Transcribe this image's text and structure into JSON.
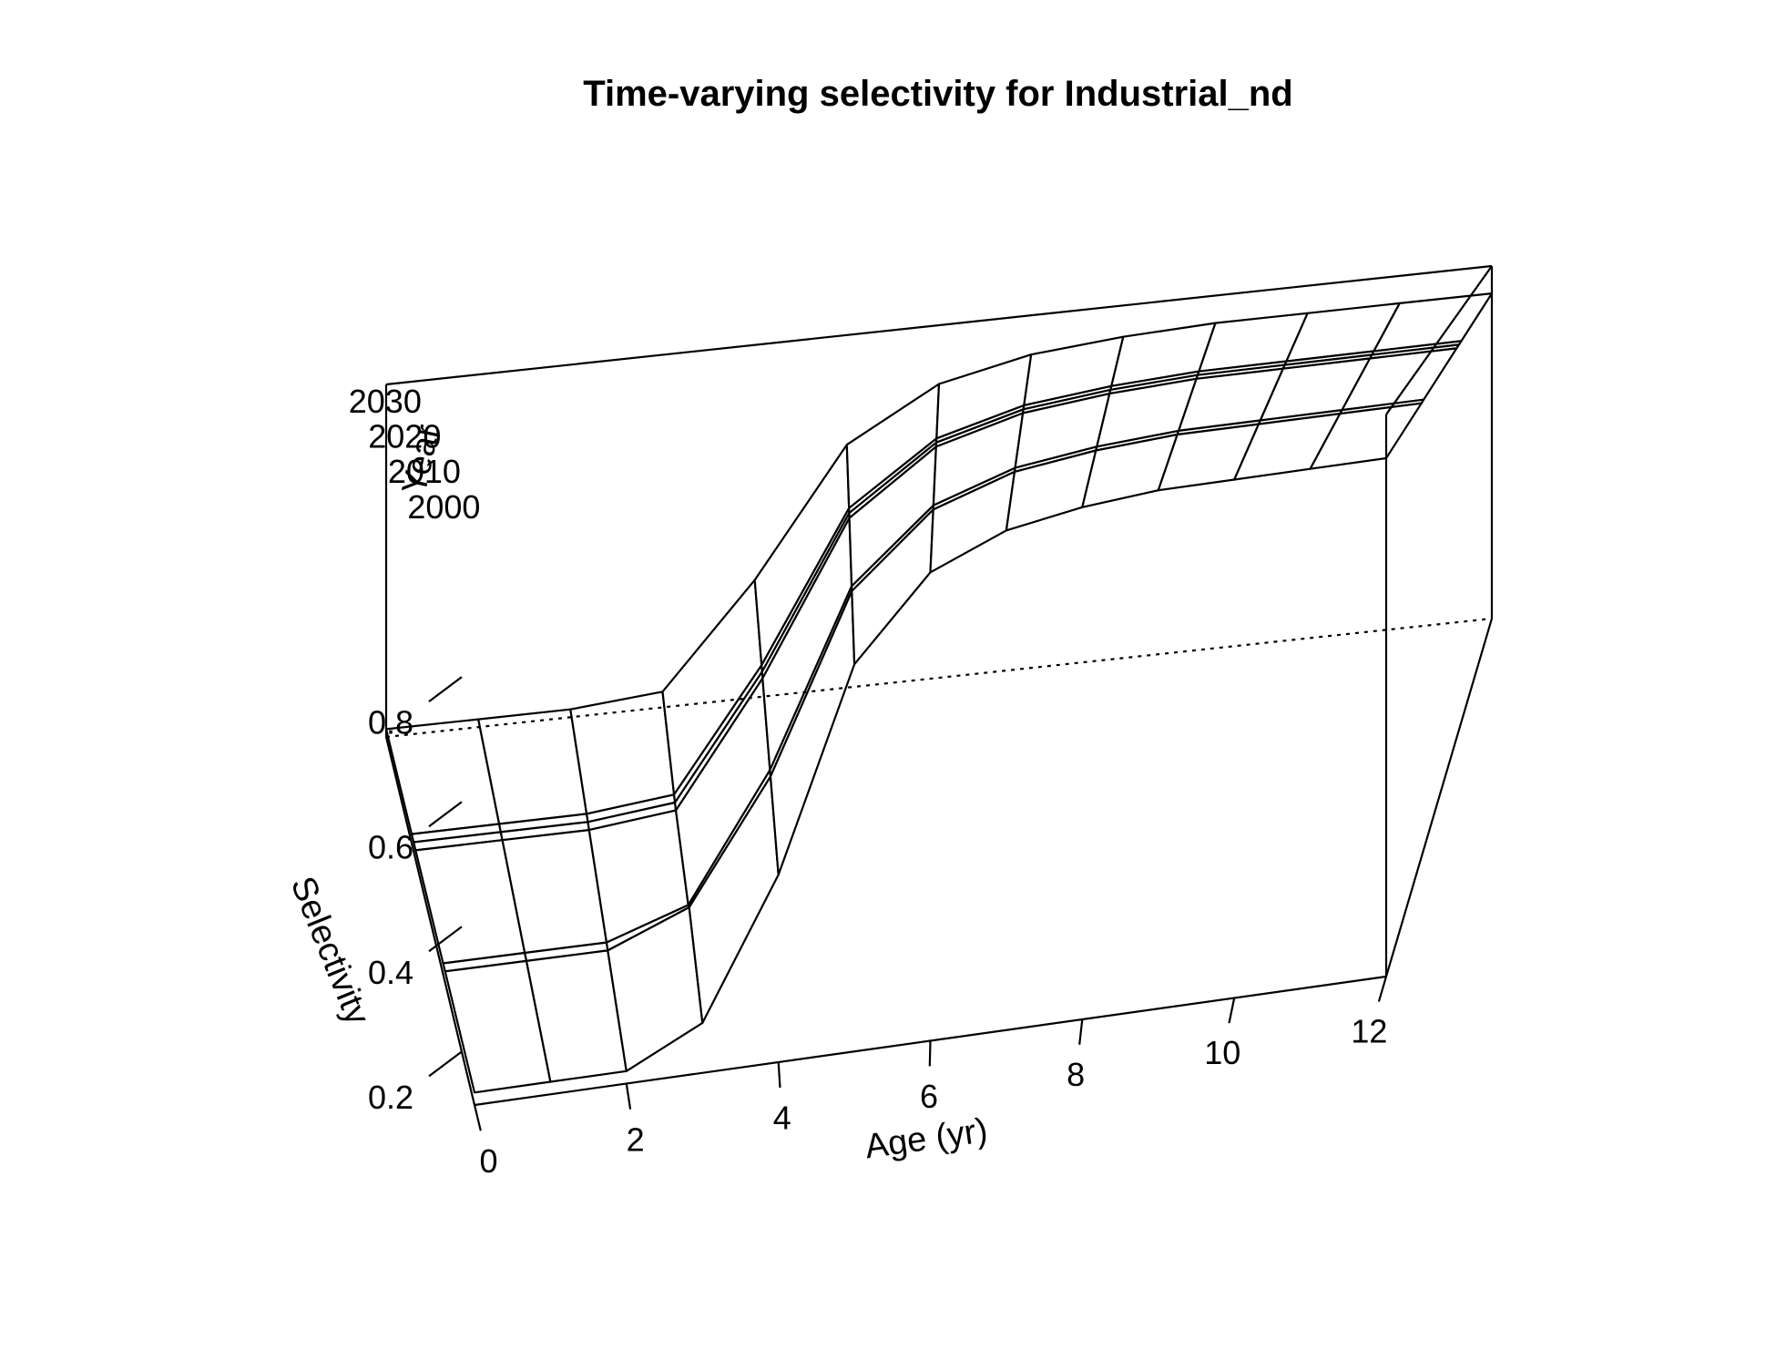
{
  "chart_data": {
    "type": "surface",
    "title": "Time-varying selectivity for Industrial_nd",
    "xlabel": "Age (yr)",
    "ylabel": "Year",
    "zlabel": "Selectivity",
    "x_ticks": [
      "0",
      "2",
      "4",
      "6",
      "8",
      "10",
      "12"
    ],
    "y_ticks": [
      "2000",
      "2010",
      "2020",
      "2030"
    ],
    "z_ticks": [
      "0.2",
      "0.4",
      "0.6",
      "0.8"
    ],
    "xlim": [
      0,
      12
    ],
    "ylim": [
      1990,
      2035
    ],
    "zlim": [
      0.1,
      1.0
    ],
    "ages": [
      0,
      1,
      2,
      3,
      4,
      5,
      6,
      7,
      8,
      9,
      10,
      11,
      12
    ],
    "years": [
      1990,
      2005,
      2006,
      2020,
      2021,
      2022,
      2035
    ],
    "surface": [
      {
        "year": 1990,
        "selectivity": [
          0.12,
          0.12,
          0.12,
          0.18,
          0.4,
          0.72,
          0.85,
          0.9,
          0.92,
          0.93,
          0.93,
          0.93,
          0.93
        ]
      },
      {
        "year": 2005,
        "selectivity": [
          0.12,
          0.12,
          0.12,
          0.18,
          0.4,
          0.72,
          0.85,
          0.9,
          0.92,
          0.93,
          0.93,
          0.93,
          0.93
        ]
      },
      {
        "year": 2006,
        "selectivity": [
          0.12,
          0.12,
          0.12,
          0.17,
          0.4,
          0.72,
          0.85,
          0.9,
          0.92,
          0.93,
          0.93,
          0.93,
          0.93
        ]
      },
      {
        "year": 2020,
        "selectivity": [
          0.12,
          0.12,
          0.12,
          0.14,
          0.4,
          0.72,
          0.85,
          0.9,
          0.92,
          0.93,
          0.93,
          0.93,
          0.93
        ]
      },
      {
        "year": 2021,
        "selectivity": [
          0.12,
          0.12,
          0.12,
          0.14,
          0.4,
          0.72,
          0.85,
          0.9,
          0.92,
          0.93,
          0.93,
          0.93,
          0.93
        ]
      },
      {
        "year": 2022,
        "selectivity": [
          0.12,
          0.12,
          0.12,
          0.14,
          0.4,
          0.72,
          0.85,
          0.9,
          0.92,
          0.93,
          0.93,
          0.93,
          0.93
        ]
      },
      {
        "year": 2035,
        "selectivity": [
          0.12,
          0.12,
          0.12,
          0.14,
          0.4,
          0.72,
          0.85,
          0.9,
          0.92,
          0.93,
          0.93,
          0.93,
          0.93
        ]
      }
    ],
    "box": true,
    "grid": false,
    "line_color": "#000000",
    "background": "#ffffff"
  }
}
